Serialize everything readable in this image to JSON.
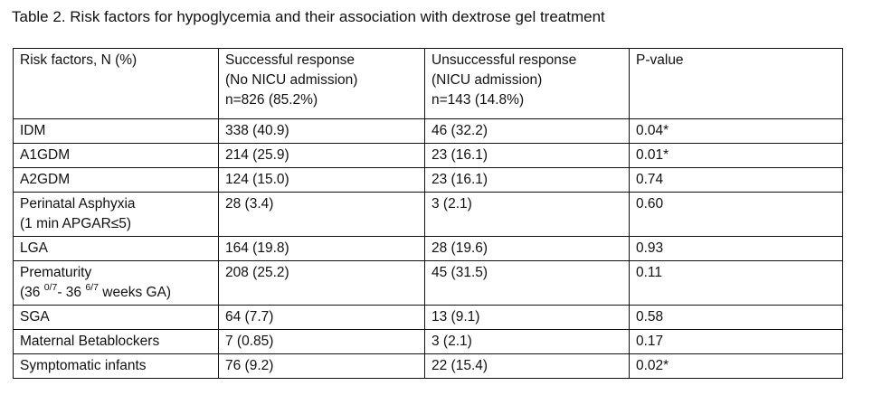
{
  "caption": "Table 2. Risk factors for hypoglycemia and their association with dextrose gel treatment",
  "headers": {
    "factor": "Risk factors, N (%)",
    "success": [
      "Successful response",
      "(No NICU admission)",
      "n=826 (85.2%)"
    ],
    "fail": [
      "Unsuccessful response",
      "(NICU admission)",
      "n=143 (14.8%)"
    ],
    "p": "P-value"
  },
  "rows": [
    {
      "factor": [
        "IDM"
      ],
      "success": "338 (40.9)",
      "fail": "46 (32.2)",
      "p": "0.04*"
    },
    {
      "factor": [
        "A1GDM"
      ],
      "success": "214 (25.9)",
      "fail": "23 (16.1)",
      "p": "0.01*"
    },
    {
      "factor": [
        "A2GDM"
      ],
      "success": "124 (15.0)",
      "fail": "23 (16.1)",
      "p": "0.74"
    },
    {
      "factor": [
        "Perinatal Asphyxia",
        "(1 min APGAR≤5)"
      ],
      "success": "28 (3.4)",
      "fail": "3 (2.1)",
      "p": "0.60"
    },
    {
      "factor": [
        "LGA"
      ],
      "success": "164 (19.8)",
      "fail": "28 (19.6)",
      "p": "0.93"
    },
    {
      "factor": [
        "Prematurity"
      ],
      "factor_ga": {
        "open": "(36",
        "sup1": "0/7",
        "mid": "- 36",
        "sup2": "6/7",
        "close": " weeks GA)"
      },
      "success": "208 (25.2)",
      "fail": "45 (31.5)",
      "p": "0.11"
    },
    {
      "factor": [
        "SGA"
      ],
      "success": "64 (7.7)",
      "fail": "13 (9.1)",
      "p": "0.58"
    },
    {
      "factor": [
        "Maternal Betablockers"
      ],
      "success": "7 (0.85)",
      "fail": "3 (2.1)",
      "p": "0.17"
    },
    {
      "factor": [
        "Symptomatic infants"
      ],
      "success": "76 (9.2)",
      "fail": "22 (15.4)",
      "p": "0.02*"
    }
  ]
}
